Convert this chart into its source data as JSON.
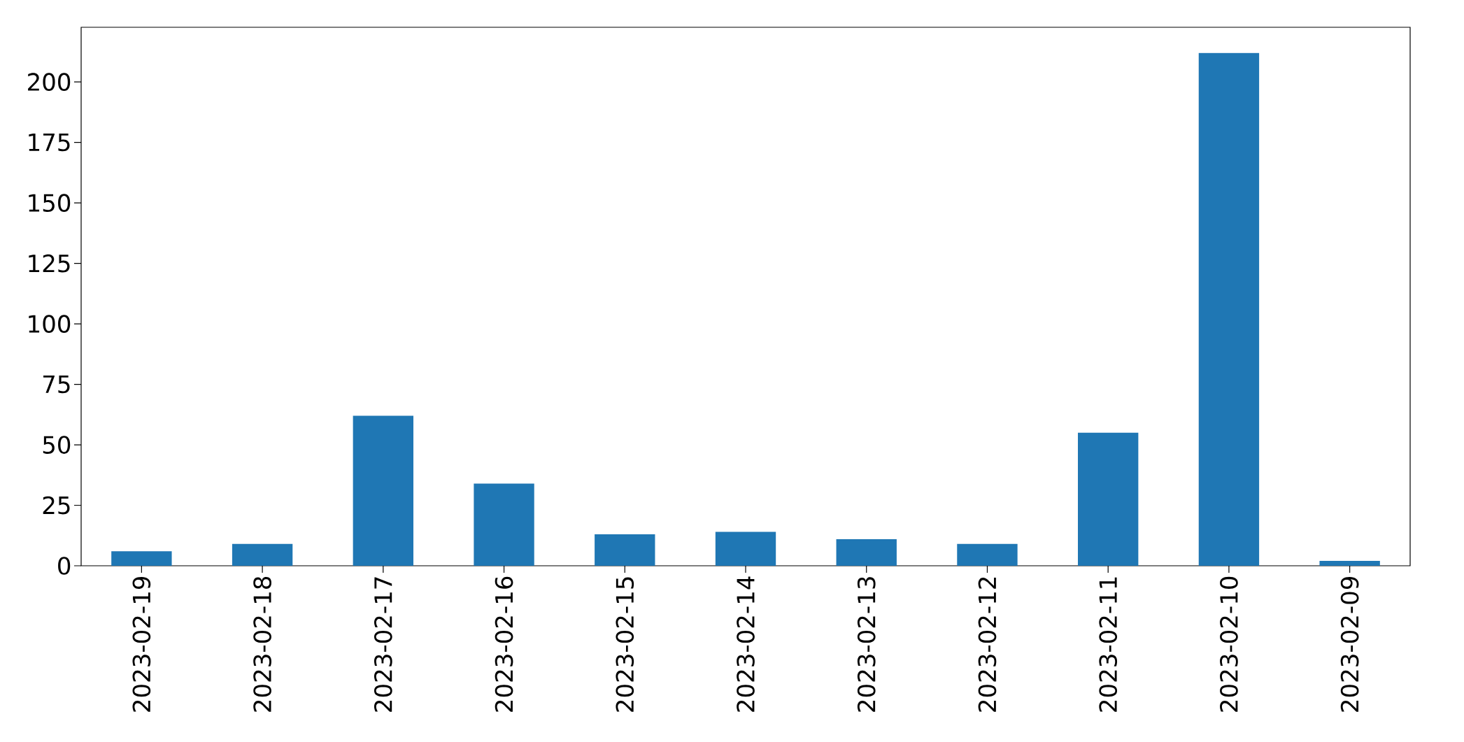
{
  "chart_data": {
    "type": "bar",
    "categories": [
      "2023-02-19",
      "2023-02-18",
      "2023-02-17",
      "2023-02-16",
      "2023-02-15",
      "2023-02-14",
      "2023-02-13",
      "2023-02-12",
      "2023-02-11",
      "2023-02-10",
      "2023-02-09"
    ],
    "values": [
      6,
      9,
      62,
      34,
      13,
      14,
      11,
      9,
      55,
      212,
      2
    ],
    "color": "#1f77b4",
    "ylim": [
      0,
      222.6
    ],
    "yticks": [
      0,
      25,
      50,
      75,
      100,
      125,
      150,
      175,
      200
    ]
  }
}
